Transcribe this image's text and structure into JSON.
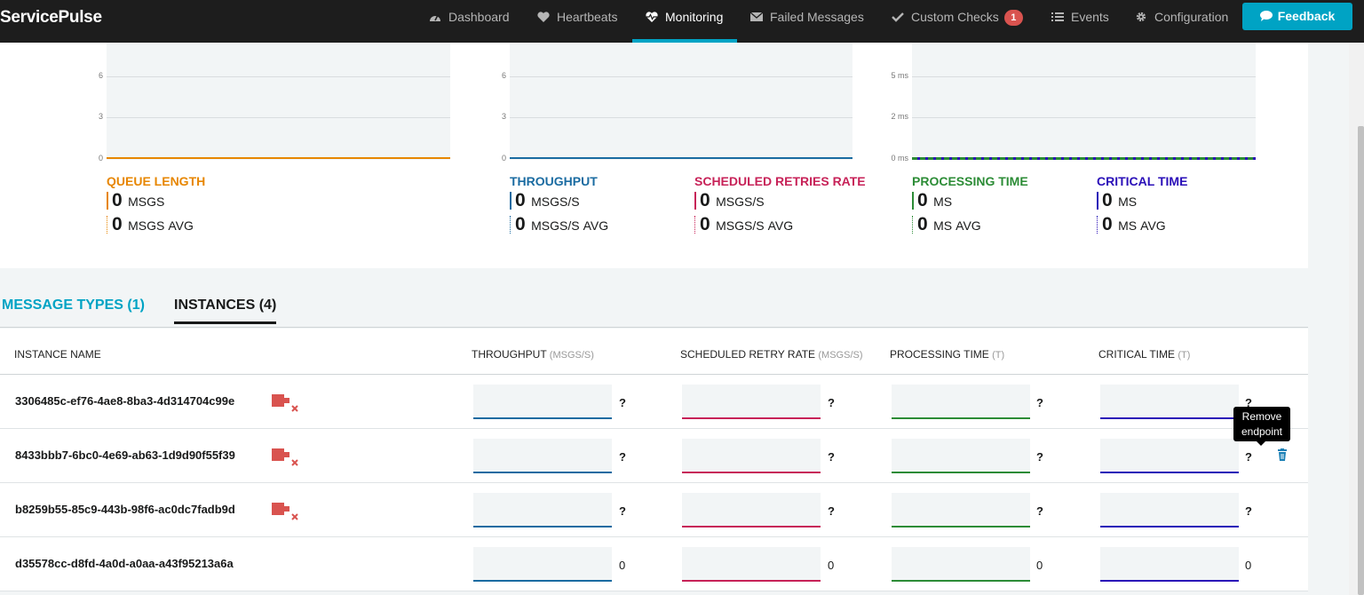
{
  "app": {
    "brand": "ServicePulse"
  },
  "nav": {
    "items": [
      {
        "label": "Dashboard",
        "icon": "dashboard-icon"
      },
      {
        "label": "Heartbeats",
        "icon": "heart-icon"
      },
      {
        "label": "Monitoring",
        "icon": "heartbeat-icon",
        "active": true
      },
      {
        "label": "Failed Messages",
        "icon": "envelope-icon"
      },
      {
        "label": "Custom Checks",
        "icon": "check-icon",
        "badge": "1"
      },
      {
        "label": "Events",
        "icon": "list-icon"
      },
      {
        "label": "Configuration",
        "icon": "gear-icon"
      }
    ],
    "feedback_label": "Feedback"
  },
  "graphs": {
    "queue": {
      "ticks": [
        "6",
        "3",
        "0"
      ],
      "color": "#e78600"
    },
    "throughput": {
      "ticks": [
        "6",
        "3",
        "0"
      ],
      "color": "#1a6ba1"
    },
    "time": {
      "ticks": [
        "5 ms",
        "2 ms",
        "0 ms"
      ],
      "color": "#2c8c36"
    }
  },
  "stats": {
    "queue_length": {
      "title": "QUEUE LENGTH",
      "value": "0",
      "unit": "MSGS",
      "avg_value": "0",
      "avg_unit": "MSGS",
      "avg_label": "AVG",
      "color": "#e78600"
    },
    "throughput": {
      "title": "THROUGHPUT",
      "value": "0",
      "unit": "MSGS/S",
      "avg_value": "0",
      "avg_unit": "MSGS/S",
      "avg_label": "AVG",
      "color": "#1a6ba1"
    },
    "retries": {
      "title": "SCHEDULED RETRIES RATE",
      "value": "0",
      "unit": "MSGS/S",
      "avg_value": "0",
      "avg_unit": "MSGS/S",
      "avg_label": "AVG",
      "color": "#c72258"
    },
    "processing": {
      "title": "PROCESSING TIME",
      "value": "0",
      "unit": "MS",
      "avg_value": "0",
      "avg_unit": "MS",
      "avg_label": "AVG",
      "color": "#2c8c36"
    },
    "critical": {
      "title": "CRITICAL TIME",
      "value": "0",
      "unit": "MS",
      "avg_value": "0",
      "avg_unit": "MS",
      "avg_label": "AVG",
      "color": "#2a0fb8"
    }
  },
  "tabs": {
    "message_types": "MESSAGE TYPES (1)",
    "instances": "INSTANCES (4)"
  },
  "table": {
    "headers": {
      "name": "INSTANCE NAME",
      "throughput": "THROUGHPUT",
      "throughput_unit": "(MSGS/S)",
      "retry": "SCHEDULED RETRY RATE",
      "retry_unit": "(MSGS/S)",
      "processing": "PROCESSING TIME",
      "processing_unit": "(T)",
      "critical": "CRITICAL TIME",
      "critical_unit": "(T)"
    },
    "rows": [
      {
        "name": "3306485c-ef76-4ae8-8ba3-4d314704c99e",
        "disconnected": true,
        "values": [
          "?",
          "?",
          "?",
          "?"
        ]
      },
      {
        "name": "8433bbb7-6bc0-4e69-ab63-1d9d90f55f39",
        "disconnected": true,
        "values": [
          "?",
          "?",
          "?",
          "?"
        ]
      },
      {
        "name": "b8259b55-85c9-443b-98f6-ac0dc7fadb9d",
        "disconnected": true,
        "values": [
          "?",
          "?",
          "?",
          "?"
        ]
      },
      {
        "name": "d35578cc-d8fd-4a0d-a0aa-a43f95213a6a",
        "disconnected": false,
        "values": [
          "0",
          "0",
          "0",
          "0"
        ]
      }
    ]
  },
  "tooltip": {
    "text": "Remove endpoint"
  }
}
